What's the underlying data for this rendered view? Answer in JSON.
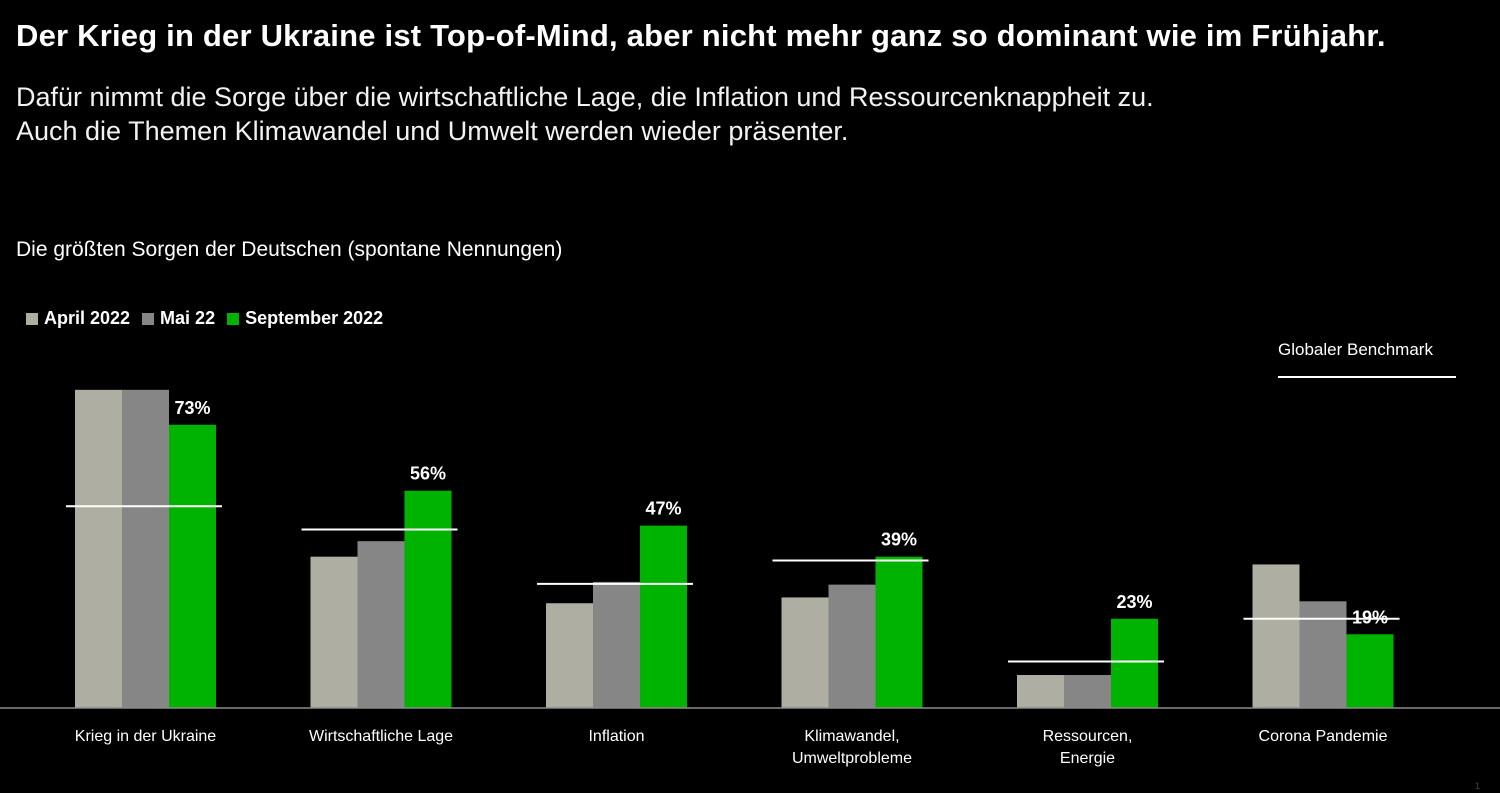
{
  "headline": "Der Krieg in der Ukraine ist Top-of-Mind, aber nicht mehr ganz so dominant wie im Frühjahr.",
  "subtitle_lines": [
    "Dafür nimmt die Sorge über die wirtschaftliche Lage, die Inflation und Ressourcenknappheit zu.",
    "Auch die Themen Klimawandel und Umwelt werden wieder präsenter."
  ],
  "benchmark_label": "Globaler Benchmark",
  "page_number": "1",
  "colors": {
    "background": "#000000",
    "april": "#aeafa2",
    "mai": "#868686",
    "september": "#00b300",
    "benchmark": "#ffffff"
  },
  "chart_data": {
    "type": "bar",
    "title": "Die größten Sorgen der Deutschen (spontane Nennungen)",
    "categories": [
      [
        "Krieg in der Ukraine"
      ],
      [
        "Wirtschaftliche Lage"
      ],
      [
        "Inflation"
      ],
      [
        "Klimawandel,",
        "Umweltprobleme"
      ],
      [
        "Ressourcen,",
        "Energie"
      ],
      [
        "Corona Pandemie"
      ]
    ],
    "series": [
      {
        "name": "April 2022",
        "color": "#aeafa2",
        "values": [
          82,
          39,
          27,
          28.5,
          8.5,
          37
        ]
      },
      {
        "name": "Mai 22",
        "color": "#868686",
        "values": [
          82,
          43,
          32.5,
          31.8,
          8.5,
          27.5
        ]
      },
      {
        "name": "September 2022",
        "color": "#00b300",
        "values": [
          73,
          56,
          47,
          39,
          23,
          19
        ],
        "value_labels": [
          "73%",
          "56%",
          "47%",
          "39%",
          "23%",
          "19%"
        ]
      }
    ],
    "benchmark": {
      "name": "Globaler Benchmark",
      "values": [
        52,
        46,
        32,
        38,
        12,
        23
      ]
    },
    "ylim": [
      0,
      100
    ],
    "legend_position": "top-left",
    "grid": false
  }
}
